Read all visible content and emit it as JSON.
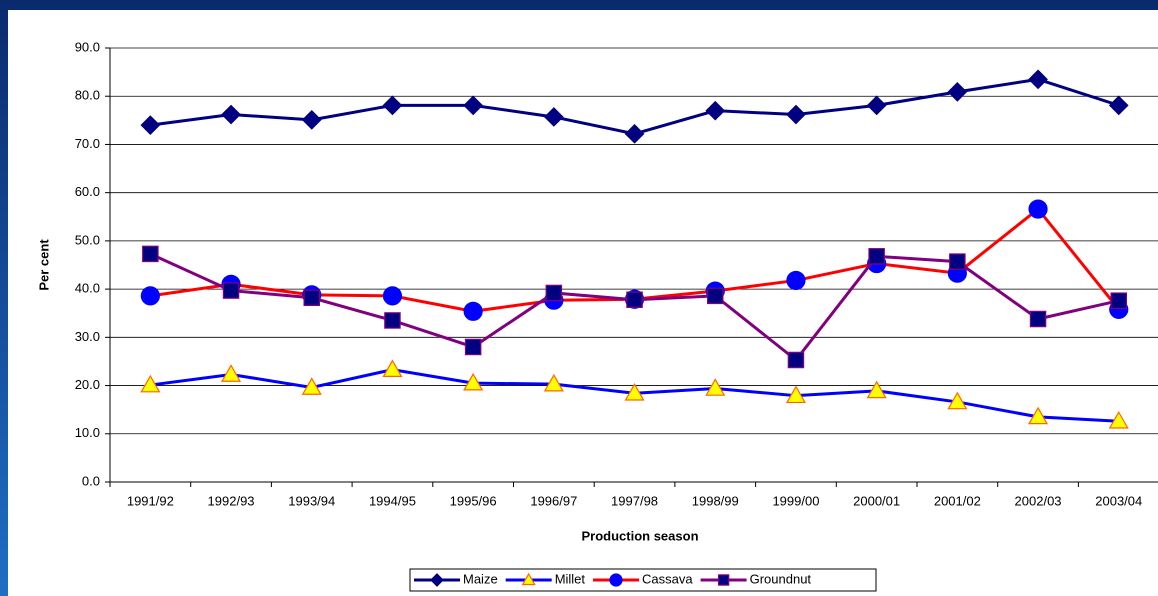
{
  "chart_data": {
    "type": "line",
    "x_label": "Production season",
    "y_label": "Per cent",
    "categories": [
      "1991/92",
      "1992/93",
      "1993/94",
      "1994/95",
      "1995/96",
      "1996/97",
      "1997/98",
      "1998/99",
      "1999/00",
      "2000/01",
      "2001/02",
      "2002/03",
      "2003/04"
    ],
    "series": [
      {
        "name": "Maize",
        "color": "#000080",
        "marker": "diamond",
        "marker_color": "#000080",
        "marker_edge": "#000080",
        "values": [
          74.0,
          76.2,
          75.1,
          78.1,
          78.1,
          75.7,
          72.2,
          77.0,
          76.2,
          78.1,
          80.9,
          83.5,
          78.1
        ]
      },
      {
        "name": "Millet",
        "color": "#0000ff",
        "marker": "triangle",
        "marker_color": "#ffff00",
        "marker_edge": "#ff6600",
        "values": [
          20.1,
          22.3,
          19.6,
          23.3,
          20.5,
          20.3,
          18.4,
          19.4,
          17.9,
          18.9,
          16.6,
          13.5,
          12.6
        ]
      },
      {
        "name": "Cassava",
        "color": "#ff0000",
        "marker": "circle",
        "marker_color": "#0000ff",
        "marker_edge": "#0000ff",
        "values": [
          38.6,
          41.0,
          38.8,
          38.6,
          35.4,
          37.7,
          37.9,
          39.6,
          41.8,
          45.3,
          43.3,
          56.6,
          35.8
        ]
      },
      {
        "name": "Groundnut",
        "color": "#800080",
        "marker": "square",
        "marker_color": "#000080",
        "marker_edge": "#800080",
        "values": [
          47.3,
          39.7,
          38.2,
          33.5,
          28.0,
          39.2,
          37.8,
          38.6,
          25.3,
          46.8,
          45.7,
          33.8,
          37.6
        ]
      }
    ],
    "ylim": [
      0,
      90
    ],
    "yticks": [
      {
        "value": 0,
        "label": "0.0"
      },
      {
        "value": 10,
        "label": "10.0"
      },
      {
        "value": 20,
        "label": "20.0"
      },
      {
        "value": 30,
        "label": "30.0"
      },
      {
        "value": 40,
        "label": "40.0"
      },
      {
        "value": 50,
        "label": "50.0"
      },
      {
        "value": 60,
        "label": "60.0"
      },
      {
        "value": 70,
        "label": "70.0"
      },
      {
        "value": 80,
        "label": "80.0"
      },
      {
        "value": 90,
        "label": "90.0"
      }
    ],
    "grid": true,
    "legend": "bottom"
  }
}
